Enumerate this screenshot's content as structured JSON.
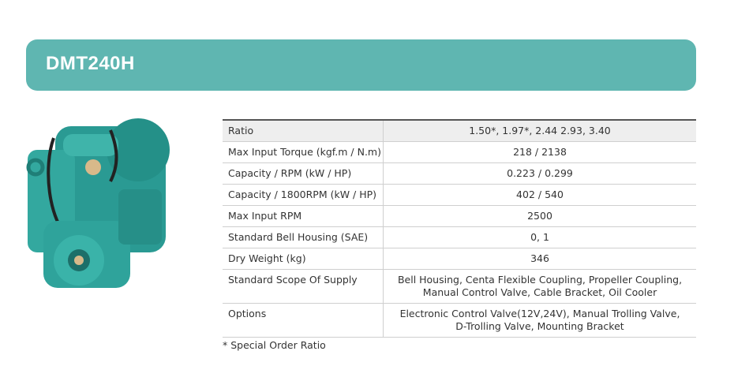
{
  "header": {
    "title": "DMT240H"
  },
  "table": {
    "rows": [
      [
        "Ratio",
        [
          "1.50*, 1.97*, 2.44 2.93, 3.40"
        ]
      ],
      [
        "Max Input Torque (kgf.m / N.m)",
        [
          "218 / 2138"
        ]
      ],
      [
        "Capacity / RPM (kW / HP)",
        [
          "0.223 / 0.299"
        ]
      ],
      [
        "Capacity / 1800RPM (kW / HP)",
        [
          "402 / 540"
        ]
      ],
      [
        "Max Input RPM",
        [
          "2500"
        ]
      ],
      [
        "Standard Bell Housing (SAE)",
        [
          "0, 1"
        ]
      ],
      [
        "Dry Weight (kg)",
        [
          "346"
        ]
      ],
      [
        "Standard Scope Of Supply",
        [
          "Bell Housing, Centa Flexible Coupling, Propeller Coupling,",
          "Manual Control Valve, Cable Bracket, Oil Cooler"
        ]
      ],
      [
        "Options",
        [
          "Electronic Control Valve(12V,24V), Manual Trolling Valve,",
          "D-Trolling Valve, Mounting Bracket"
        ]
      ]
    ]
  },
  "footnote": "* Special Order Ratio"
}
